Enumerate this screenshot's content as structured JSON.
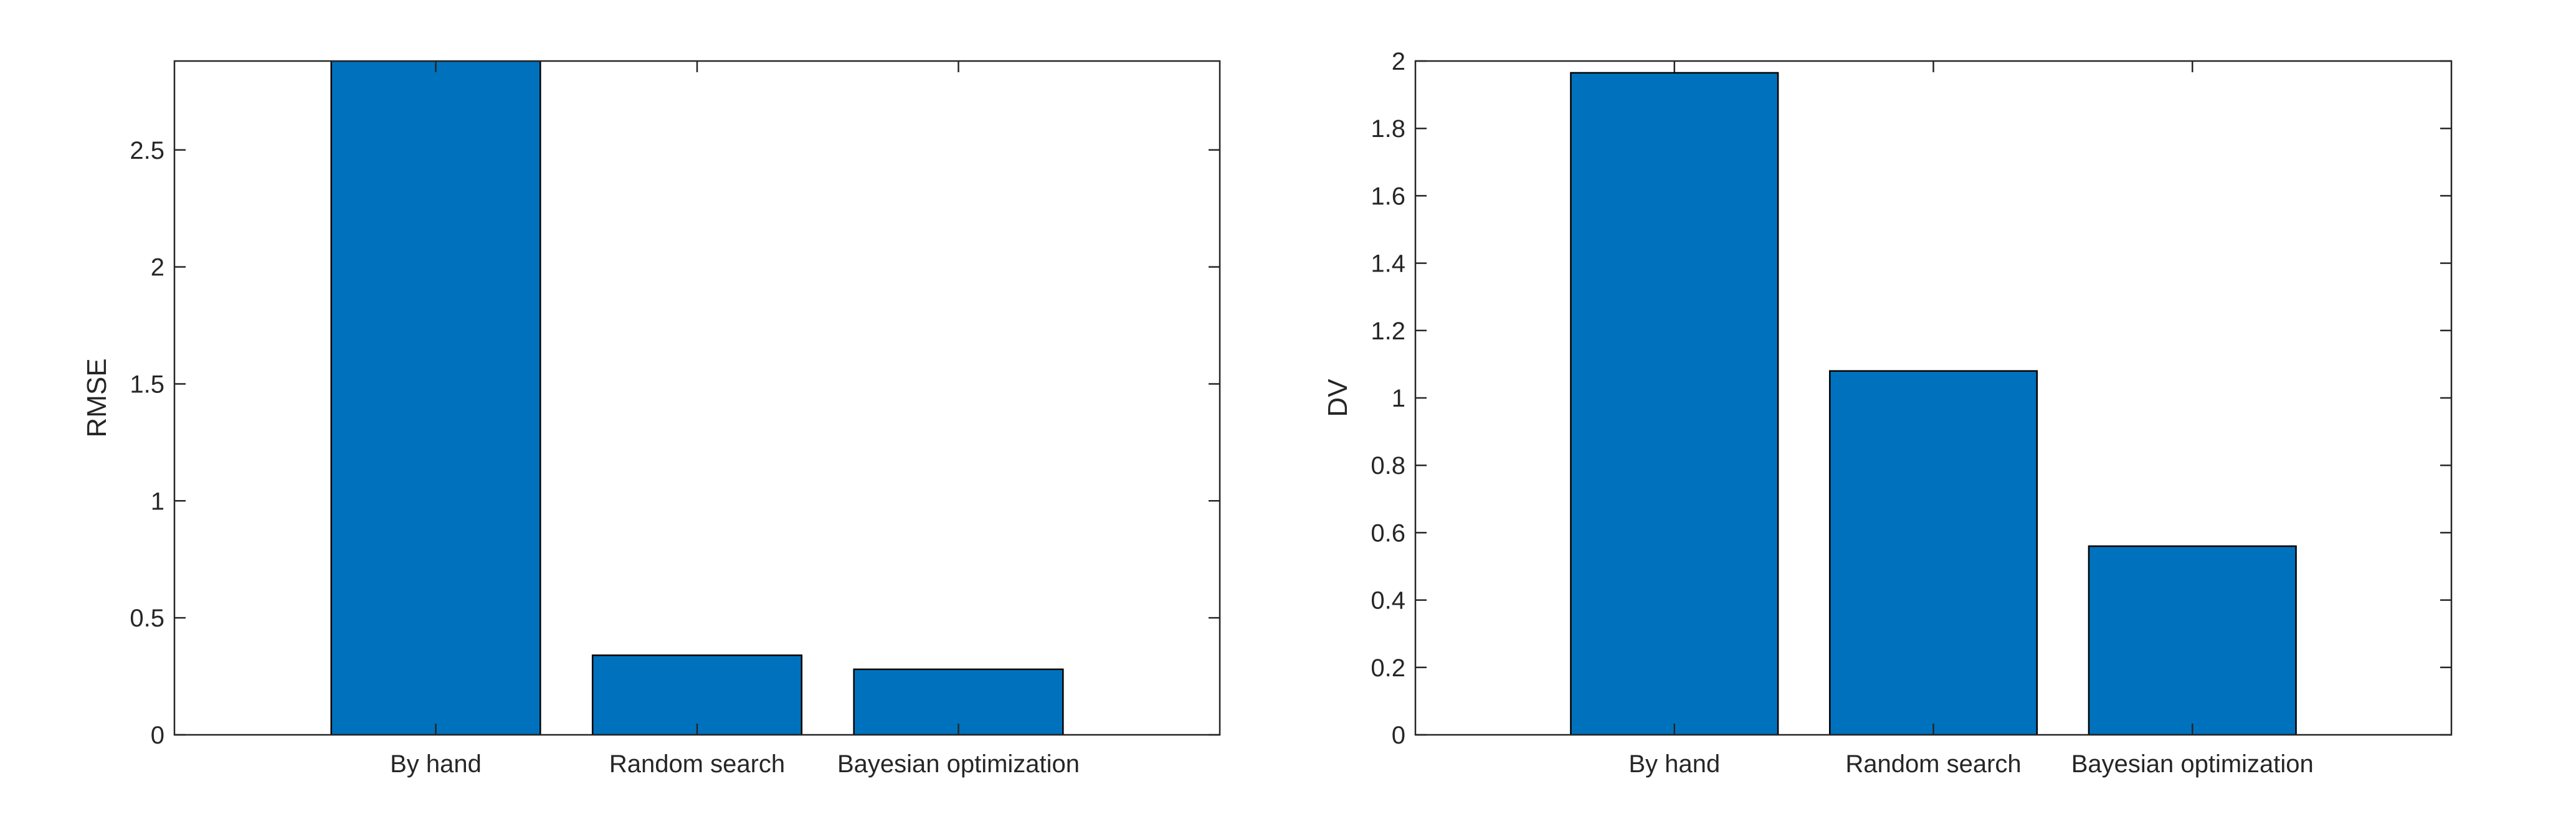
{
  "chart_data": [
    {
      "type": "bar",
      "title": "",
      "xlabel": "",
      "ylabel": "RMSE",
      "categories": [
        "By hand",
        "Random search",
        "Bayesian optimization"
      ],
      "values": [
        2.95,
        0.34,
        0.28
      ],
      "ylim": [
        0,
        2.88
      ],
      "yticks": [
        0,
        0.5,
        1,
        1.5,
        2,
        2.5
      ],
      "ytick_labels": [
        "0",
        "0.5",
        "1",
        "1.5",
        "2",
        "2.5"
      ],
      "xlim": [
        0,
        4
      ],
      "bar_color": "#0072BD",
      "grid": false,
      "legend": "none"
    },
    {
      "type": "bar",
      "title": "",
      "xlabel": "",
      "ylabel": "DV",
      "categories": [
        "By hand",
        "Random search",
        "Bayesian optimization"
      ],
      "values": [
        1.965,
        1.08,
        0.56
      ],
      "ylim": [
        0,
        2
      ],
      "yticks": [
        0,
        0.2,
        0.4,
        0.6,
        0.8,
        1,
        1.2,
        1.4,
        1.6,
        1.8,
        2
      ],
      "ytick_labels": [
        "0",
        "0.2",
        "0.4",
        "0.6",
        "0.8",
        "1",
        "1.2",
        "1.4",
        "1.6",
        "1.8",
        "2"
      ],
      "xlim": [
        0,
        4
      ],
      "bar_color": "#0072BD",
      "grid": false,
      "legend": "none"
    }
  ]
}
